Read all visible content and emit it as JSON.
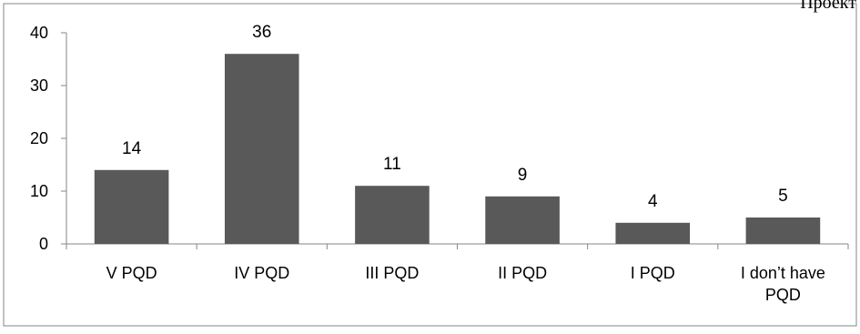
{
  "page": {
    "corner_text": "Проект"
  },
  "colors": {
    "bar": "#595959",
    "axis": "#868686",
    "border": "#868686",
    "text": "#000000",
    "background": "#ffffff"
  },
  "chart_data": {
    "type": "bar",
    "title": "",
    "xlabel": "",
    "ylabel": "",
    "ylim": [
      0,
      40
    ],
    "yticks": [
      0,
      10,
      20,
      30,
      40
    ],
    "grid": false,
    "legend": "none",
    "categories": [
      "V PQD",
      "IV  PQD",
      "III PQD",
      "II  PQD",
      "I PQD",
      "I don’t have PQD"
    ],
    "category_lines": [
      [
        "V PQD"
      ],
      [
        "IV  PQD"
      ],
      [
        "III PQD"
      ],
      [
        "II  PQD"
      ],
      [
        "I PQD"
      ],
      [
        "I don’t have",
        "PQD"
      ]
    ],
    "values": [
      14,
      36,
      11,
      9,
      4,
      5
    ],
    "data_labels": [
      "14",
      "36",
      "11",
      "9",
      "4",
      "5"
    ],
    "ytick_labels": [
      "0",
      "10",
      "20",
      "30",
      "40"
    ]
  }
}
